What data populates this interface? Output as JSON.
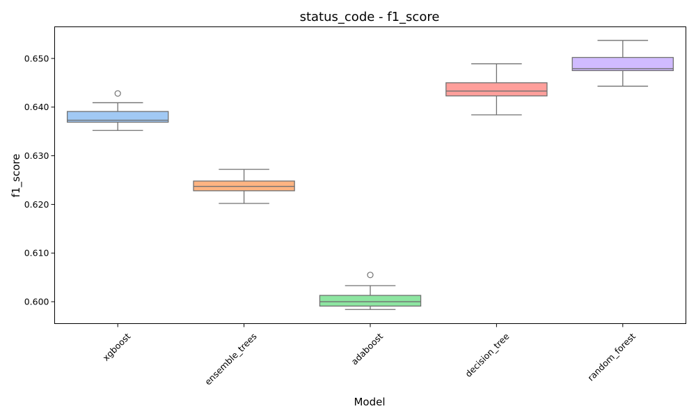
{
  "chart_data": {
    "type": "boxplot",
    "title": "status_code - f1_score",
    "xlabel": "Model",
    "ylabel": "f1_score",
    "ylim": [
      0.5955,
      0.6565
    ],
    "yticks": [
      "0.600",
      "0.610",
      "0.620",
      "0.630",
      "0.640",
      "0.650"
    ],
    "grid": false,
    "categories": [
      "xgboost",
      "ensemble_trees",
      "adaboost",
      "decision_tree",
      "random_forest"
    ],
    "colors": [
      "#a1c9f4",
      "#ffb482",
      "#8de5a1",
      "#ff9f9b",
      "#d0bbff"
    ],
    "boxes": [
      {
        "model": "xgboost",
        "whisker_low": 0.6352,
        "q1": 0.6369,
        "median": 0.6373,
        "q3": 0.6391,
        "whisker_high": 0.6409,
        "outliers": [
          0.6428
        ]
      },
      {
        "model": "ensemble_trees",
        "whisker_low": 0.6202,
        "q1": 0.6228,
        "median": 0.6237,
        "q3": 0.6248,
        "whisker_high": 0.6272,
        "outliers": []
      },
      {
        "model": "adaboost",
        "whisker_low": 0.5984,
        "q1": 0.5991,
        "median": 0.6,
        "q3": 0.6013,
        "whisker_high": 0.6033,
        "outliers": [
          0.6055
        ]
      },
      {
        "model": "decision_tree",
        "whisker_low": 0.6384,
        "q1": 0.6423,
        "median": 0.6433,
        "q3": 0.645,
        "whisker_high": 0.6489,
        "outliers": []
      },
      {
        "model": "random_forest",
        "whisker_low": 0.6443,
        "q1": 0.6475,
        "median": 0.6479,
        "q3": 0.6502,
        "whisker_high": 0.6537,
        "outliers": []
      }
    ]
  }
}
